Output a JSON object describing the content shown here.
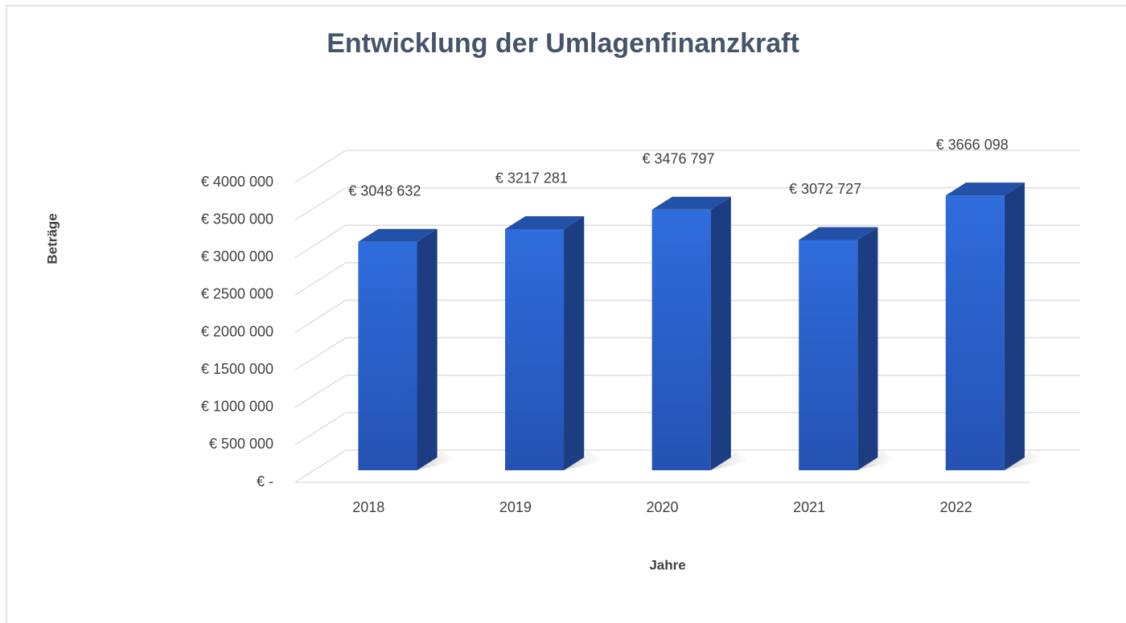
{
  "chart_data": {
    "type": "bar3d",
    "title": "Entwicklung der Umlagenfinanzkraft",
    "y_label": "Beträge",
    "x_label": "Jahre",
    "categories": [
      "2018",
      "2019",
      "2020",
      "2021",
      "2022"
    ],
    "values": [
      3048632,
      3217281,
      3476797,
      3072727,
      3666098
    ],
    "value_labels": [
      "€ 3048 632",
      "€ 3217 281",
      "€ 3476 797",
      "€ 3072 727",
      "€ 3666 098"
    ],
    "color": "#2b62cf",
    "ylim": [
      0,
      4000000
    ],
    "yticks": [
      {
        "value": 0,
        "label": "€ -"
      },
      {
        "value": 500000,
        "label": "€ 500 000"
      },
      {
        "value": 1000000,
        "label": "€ 1000 000"
      },
      {
        "value": 1500000,
        "label": "€ 1500 000"
      },
      {
        "value": 2000000,
        "label": "€ 2000 000"
      },
      {
        "value": 2500000,
        "label": "€ 2500 000"
      },
      {
        "value": 3000000,
        "label": "€ 3000 000"
      },
      {
        "value": 3500000,
        "label": "€ 3500 000"
      },
      {
        "value": 4000000,
        "label": "€ 4000 000"
      }
    ],
    "grid": true
  }
}
